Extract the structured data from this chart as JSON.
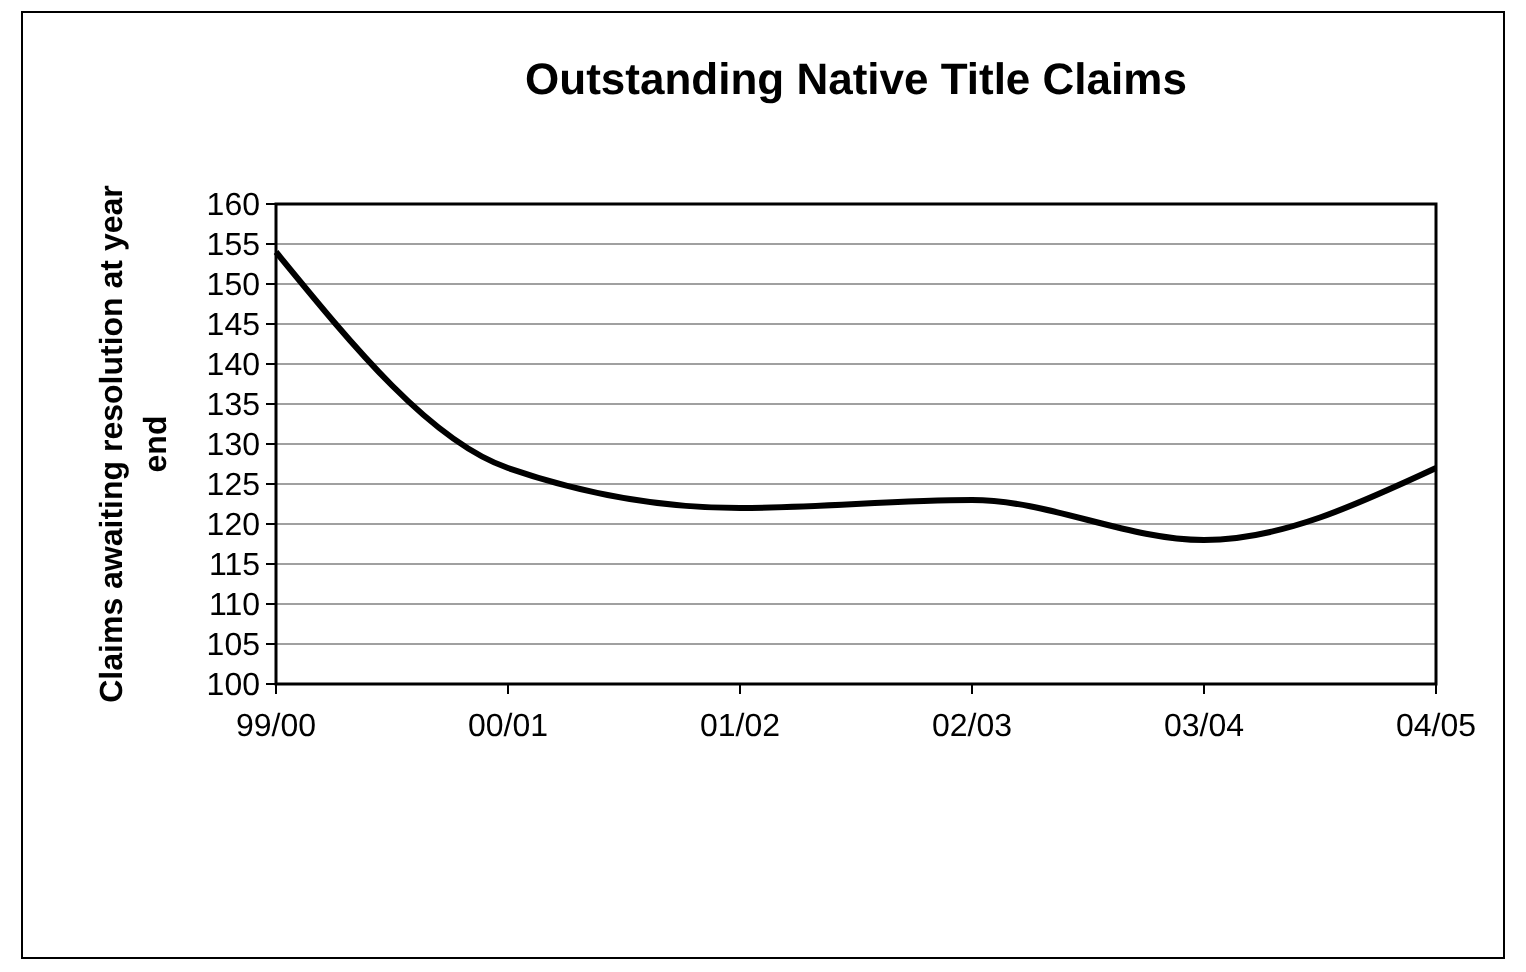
{
  "chart_data": {
    "type": "line",
    "title": "Outstanding Native Title Claims",
    "ylabel": "Claims awaiting resolution at year end",
    "categories": [
      "99/00",
      "00/01",
      "01/02",
      "02/03",
      "03/04",
      "04/05"
    ],
    "series": [
      {
        "color": "#000000",
        "values": [
          154,
          127,
          122,
          123,
          118,
          127
        ]
      }
    ],
    "ylim": [
      100,
      160
    ],
    "yticks": [
      100,
      105,
      110,
      115,
      120,
      125,
      130,
      135,
      140,
      145,
      150,
      155,
      160
    ],
    "grid": "y",
    "marker": "none",
    "line_style": "solid"
  }
}
